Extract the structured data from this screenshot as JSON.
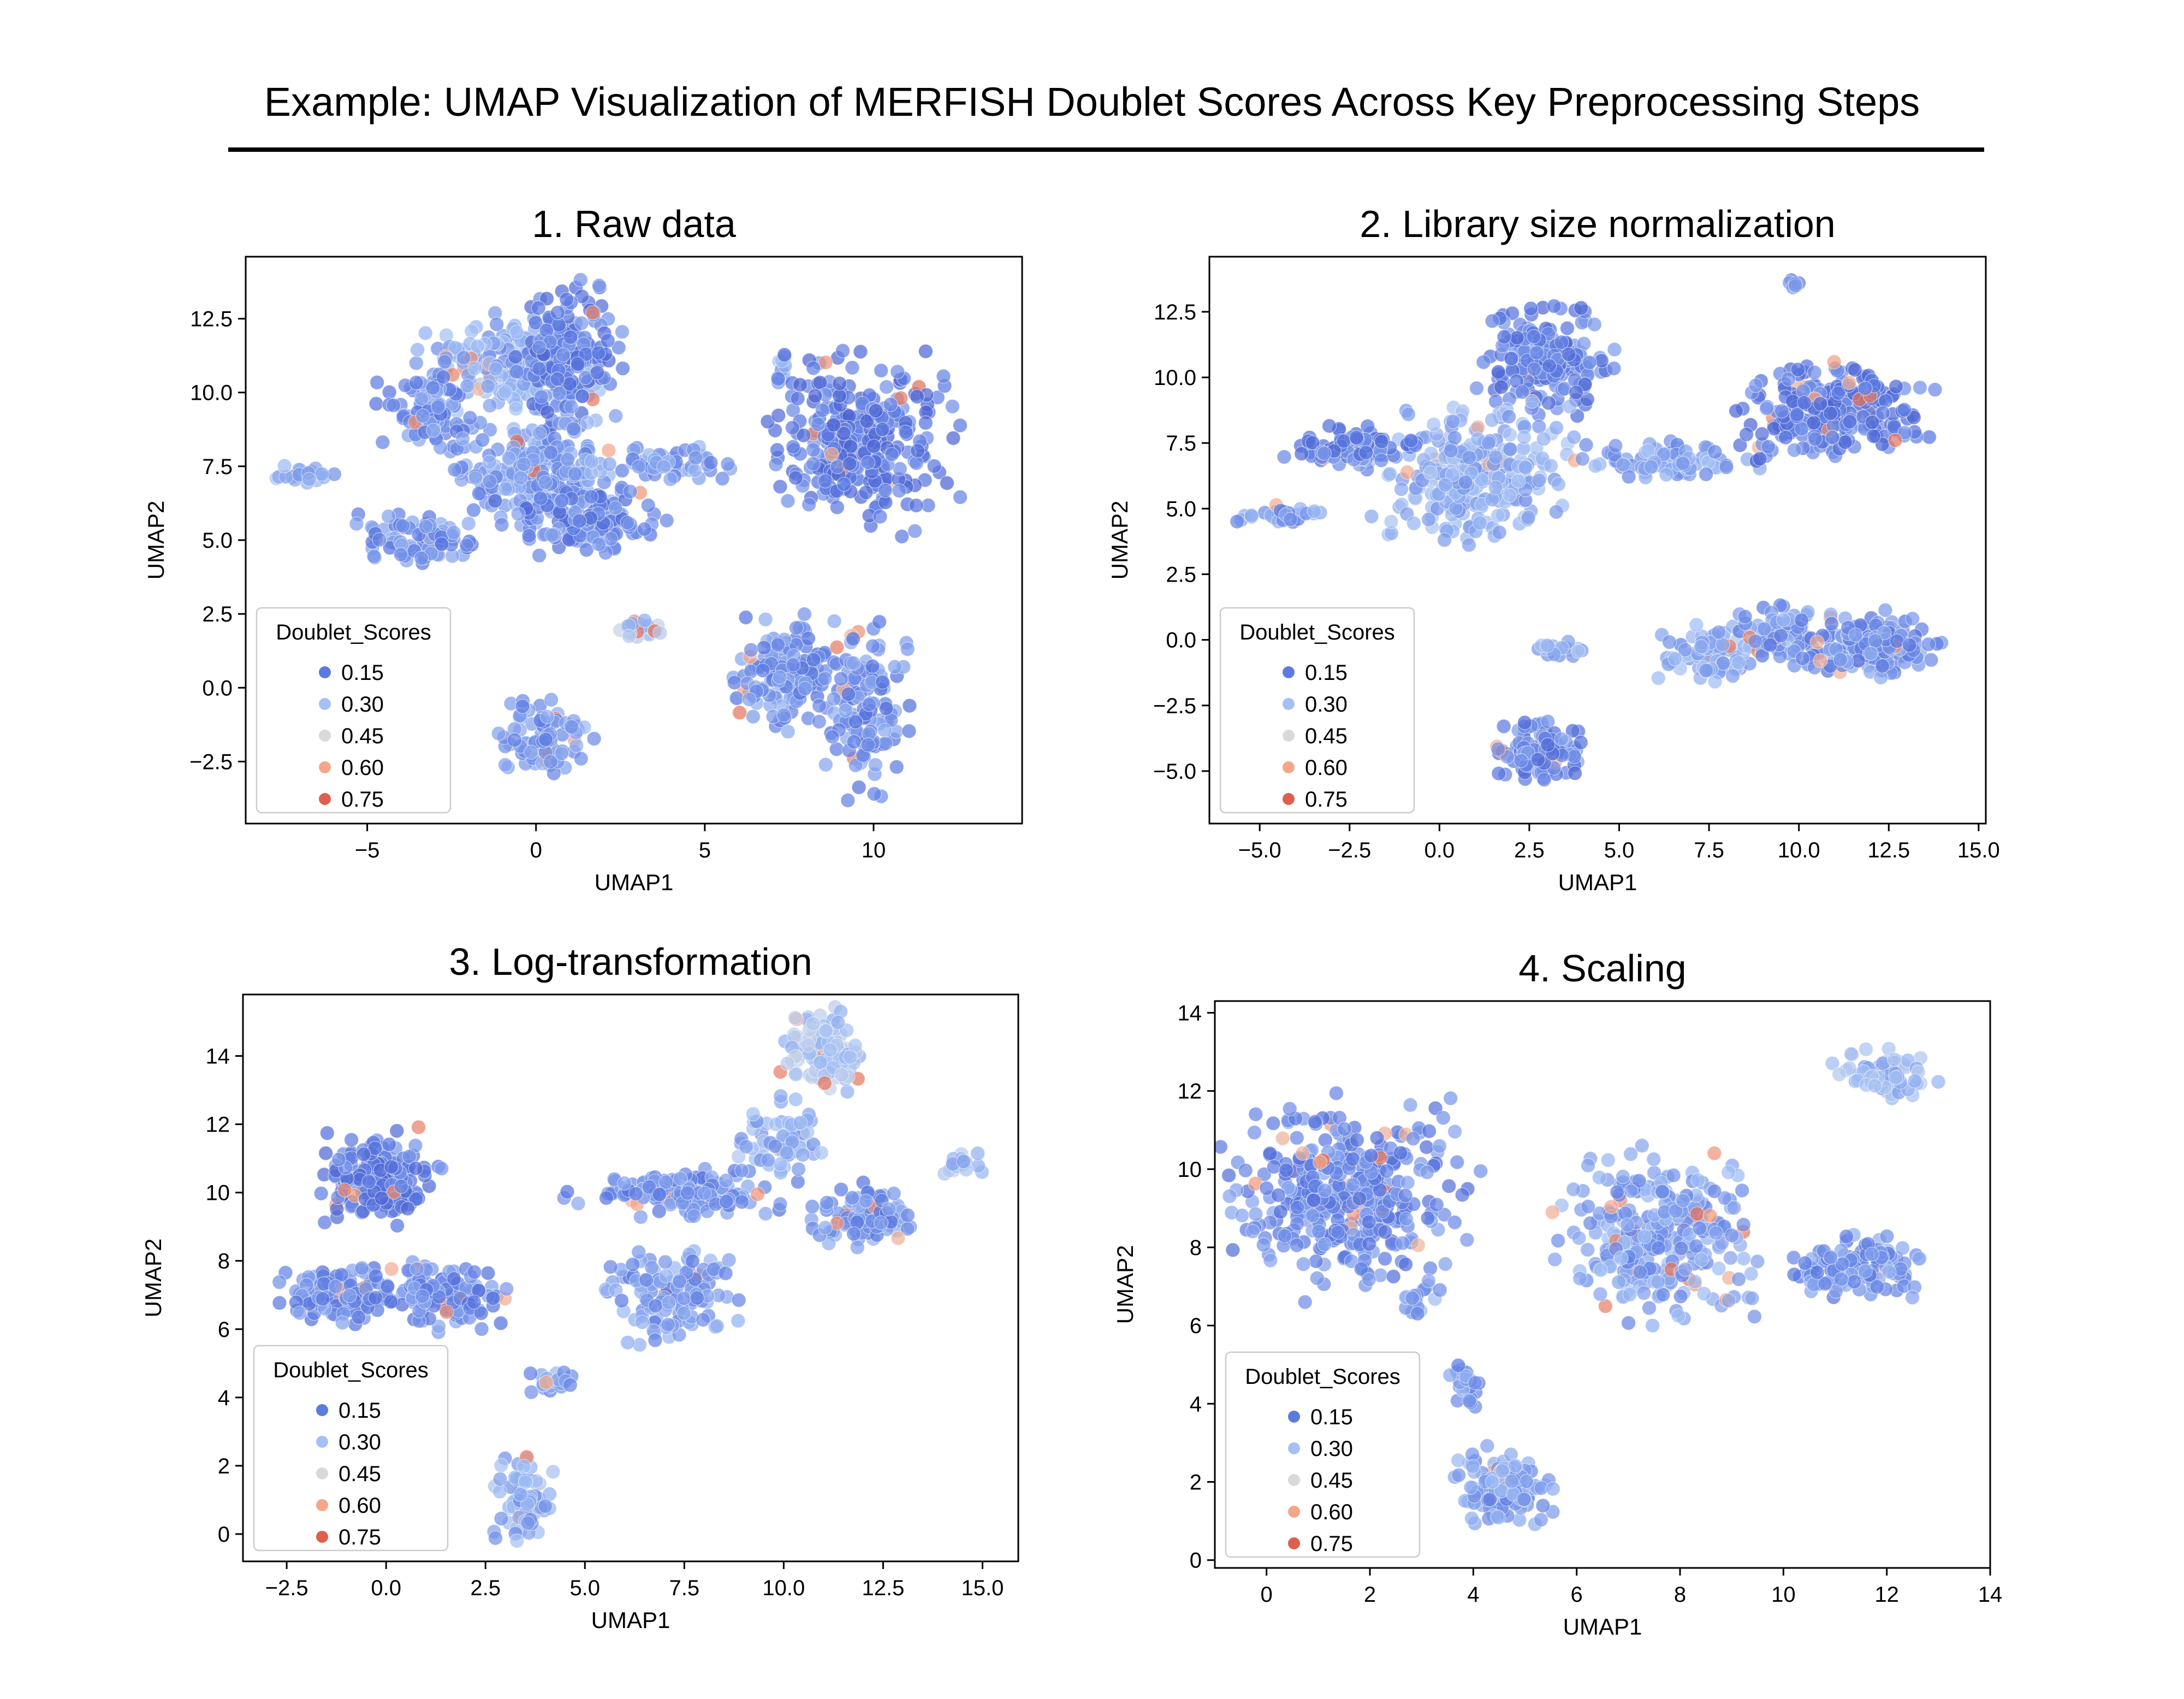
{
  "figure": {
    "title": "Example: UMAP Visualization of MERFISH Doublet Scores Across Key Preprocessing Steps"
  },
  "legend": {
    "title": "Doublet_Scores",
    "entries": [
      {
        "label": "0.15",
        "color": "#5b7be0"
      },
      {
        "label": "0.30",
        "color": "#a6c0f5"
      },
      {
        "label": "0.45",
        "color": "#d9d9da"
      },
      {
        "label": "0.60",
        "color": "#f3a688"
      },
      {
        "label": "0.75",
        "color": "#dd604c"
      }
    ]
  },
  "colors": {
    "palette": "coolwarm",
    "low": "#4c6fd8",
    "high": "#d9533f"
  },
  "chart_data": [
    {
      "type": "scatter",
      "title": "1. Raw data",
      "xlabel": "UMAP1",
      "ylabel": "UMAP2",
      "xlim": [
        -8.6,
        14.4
      ],
      "ylim": [
        -4.6,
        14.6
      ],
      "xticks": [
        -5,
        0,
        5,
        10
      ],
      "xtick_labels": [
        "−5",
        "0",
        "5",
        "10"
      ],
      "yticks": [
        -2.5,
        0.0,
        2.5,
        5.0,
        7.5,
        10.0,
        12.5
      ],
      "ytick_labels": [
        "−2.5",
        "0.0",
        "2.5",
        "5.0",
        "7.5",
        "10.0",
        "12.5"
      ],
      "grid": false,
      "legend_position": "lower-left",
      "hot_score": 0.72,
      "clusters": [
        {
          "cx": -1.0,
          "cy": 10.8,
          "rx": 2.6,
          "ry": 1.8,
          "n": 170,
          "score": 0.25
        },
        {
          "cx": 1.0,
          "cy": 11.3,
          "rx": 1.6,
          "ry": 2.4,
          "n": 170,
          "score": 0.16
        },
        {
          "cx": -3.2,
          "cy": 9.4,
          "rx": 1.4,
          "ry": 1.6,
          "n": 90,
          "score": 0.2
        },
        {
          "cx": 0.2,
          "cy": 7.4,
          "rx": 2.8,
          "ry": 1.8,
          "n": 200,
          "score": 0.23
        },
        {
          "cx": 1.4,
          "cy": 5.6,
          "rx": 2.6,
          "ry": 1.1,
          "n": 120,
          "score": 0.17
        },
        {
          "cx": -3.4,
          "cy": 5.0,
          "rx": 2.0,
          "ry": 0.8,
          "n": 90,
          "score": 0.2
        },
        {
          "cx": -6.8,
          "cy": 7.2,
          "rx": 1.0,
          "ry": 0.3,
          "n": 25,
          "score": 0.26
        },
        {
          "cx": 4.2,
          "cy": 7.6,
          "rx": 1.8,
          "ry": 0.6,
          "n": 45,
          "score": 0.22
        },
        {
          "cx": 7.3,
          "cy": 10.8,
          "rx": 0.2,
          "ry": 1.0,
          "n": 10,
          "score": 0.25
        },
        {
          "cx": 9.6,
          "cy": 8.3,
          "rx": 2.8,
          "ry": 2.8,
          "n": 290,
          "score": 0.14
        },
        {
          "cx": 3.0,
          "cy": 2.0,
          "rx": 0.8,
          "ry": 0.35,
          "n": 25,
          "score": 0.33
        },
        {
          "cx": 0.2,
          "cy": -1.7,
          "rx": 1.4,
          "ry": 1.2,
          "n": 90,
          "score": 0.22
        },
        {
          "cx": 7.3,
          "cy": 0.5,
          "rx": 1.5,
          "ry": 2.0,
          "n": 140,
          "score": 0.2
        },
        {
          "cx": 9.7,
          "cy": -0.6,
          "rx": 1.2,
          "ry": 2.8,
          "n": 130,
          "score": 0.19
        }
      ]
    },
    {
      "type": "scatter",
      "title": "2. Library size normalization",
      "xlabel": "UMAP1",
      "ylabel": "UMAP2",
      "xlim": [
        -6.4,
        15.2
      ],
      "ylim": [
        -7.0,
        14.6
      ],
      "xticks": [
        -5.0,
        -2.5,
        0.0,
        2.5,
        5.0,
        7.5,
        10.0,
        12.5,
        15.0
      ],
      "xtick_labels": [
        "−5.0",
        "−2.5",
        "0.0",
        "2.5",
        "5.0",
        "7.5",
        "10.0",
        "12.5",
        "15.0"
      ],
      "yticks": [
        -5.0,
        -2.5,
        0.0,
        2.5,
        5.0,
        7.5,
        10.0,
        12.5
      ],
      "ytick_labels": [
        "−5.0",
        "−2.5",
        "0.0",
        "2.5",
        "5.0",
        "7.5",
        "10.0",
        "12.5"
      ],
      "grid": false,
      "legend_position": "lower-left",
      "hot_score": 0.72,
      "clusters": [
        {
          "cx": 3.0,
          "cy": 10.6,
          "rx": 1.8,
          "ry": 2.0,
          "n": 180,
          "score": 0.16
        },
        {
          "cx": 1.0,
          "cy": 6.5,
          "rx": 2.6,
          "ry": 2.6,
          "n": 280,
          "score": 0.27
        },
        {
          "cx": -2.5,
          "cy": 7.3,
          "rx": 1.8,
          "ry": 0.8,
          "n": 90,
          "score": 0.17
        },
        {
          "cx": -4.4,
          "cy": 4.8,
          "rx": 1.3,
          "ry": 0.35,
          "n": 30,
          "score": 0.22
        },
        {
          "cx": 6.5,
          "cy": 6.8,
          "rx": 2.8,
          "ry": 0.7,
          "n": 80,
          "score": 0.24
        },
        {
          "cx": 11.1,
          "cy": 8.7,
          "rx": 2.6,
          "ry": 1.9,
          "n": 240,
          "score": 0.15
        },
        {
          "cx": 2.8,
          "cy": -4.3,
          "rx": 1.2,
          "ry": 1.2,
          "n": 110,
          "score": 0.17
        },
        {
          "cx": 3.3,
          "cy": -0.4,
          "rx": 0.8,
          "ry": 0.3,
          "n": 25,
          "score": 0.27
        },
        {
          "cx": 7.6,
          "cy": -0.5,
          "rx": 1.4,
          "ry": 1.0,
          "n": 80,
          "score": 0.26
        },
        {
          "cx": 9.5,
          "cy": 0.2,
          "rx": 1.3,
          "ry": 1.1,
          "n": 70,
          "score": 0.22
        },
        {
          "cx": 12.0,
          "cy": -0.2,
          "rx": 1.9,
          "ry": 1.2,
          "n": 190,
          "score": 0.2
        },
        {
          "cx": 9.8,
          "cy": 13.5,
          "rx": 0.2,
          "ry": 0.25,
          "n": 6,
          "score": 0.22
        }
      ]
    },
    {
      "type": "scatter",
      "title": "3. Log-transformation",
      "xlabel": "UMAP1",
      "ylabel": "UMAP2",
      "xlim": [
        -3.6,
        15.9
      ],
      "ylim": [
        -0.8,
        15.8
      ],
      "xticks": [
        -2.5,
        0.0,
        2.5,
        5.0,
        7.5,
        10.0,
        12.5,
        15.0
      ],
      "xtick_labels": [
        "−2.5",
        "0.0",
        "2.5",
        "5.0",
        "7.5",
        "10.0",
        "12.5",
        "15.0"
      ],
      "yticks": [
        0,
        2,
        4,
        6,
        8,
        10,
        12,
        14
      ],
      "ytick_labels": [
        "0",
        "2",
        "4",
        "6",
        "8",
        "10",
        "12",
        "14"
      ],
      "grid": false,
      "legend_position": "lower-left",
      "hot_score": 0.72,
      "clusters": [
        {
          "cx": -0.2,
          "cy": 10.4,
          "rx": 1.5,
          "ry": 1.4,
          "n": 170,
          "score": 0.15
        },
        {
          "cx": -1.2,
          "cy": 7.0,
          "rx": 1.5,
          "ry": 0.9,
          "n": 110,
          "score": 0.18
        },
        {
          "cx": 1.3,
          "cy": 7.0,
          "rx": 1.9,
          "ry": 1.0,
          "n": 130,
          "score": 0.19
        },
        {
          "cx": 4.2,
          "cy": 4.5,
          "rx": 0.6,
          "ry": 0.4,
          "n": 25,
          "score": 0.23
        },
        {
          "cx": 3.5,
          "cy": 1.0,
          "rx": 0.8,
          "ry": 1.2,
          "n": 80,
          "score": 0.26
        },
        {
          "cx": 7.4,
          "cy": 10.0,
          "rx": 2.6,
          "ry": 0.7,
          "n": 130,
          "score": 0.19
        },
        {
          "cx": 7.3,
          "cy": 7.0,
          "rx": 1.6,
          "ry": 1.4,
          "n": 120,
          "score": 0.22
        },
        {
          "cx": 10.0,
          "cy": 11.4,
          "rx": 1.0,
          "ry": 1.3,
          "n": 70,
          "score": 0.27
        },
        {
          "cx": 12.1,
          "cy": 9.3,
          "rx": 1.4,
          "ry": 0.9,
          "n": 100,
          "score": 0.2
        },
        {
          "cx": 14.4,
          "cy": 10.9,
          "rx": 0.6,
          "ry": 0.4,
          "n": 15,
          "score": 0.3
        },
        {
          "cx": 11.0,
          "cy": 14.1,
          "rx": 1.0,
          "ry": 1.2,
          "n": 110,
          "score": 0.33
        }
      ]
    },
    {
      "type": "scatter",
      "title": "4. Scaling",
      "xlabel": "UMAP1",
      "ylabel": "UMAP2",
      "xlim": [
        -1.0,
        14.0
      ],
      "ylim": [
        -0.2,
        14.3
      ],
      "xticks": [
        0,
        2,
        4,
        6,
        8,
        10,
        12,
        14
      ],
      "xtick_labels": [
        "0",
        "2",
        "4",
        "6",
        "8",
        "10",
        "12",
        "14"
      ],
      "yticks": [
        0,
        2,
        4,
        6,
        8,
        10,
        12,
        14
      ],
      "ytick_labels": [
        "0",
        "2",
        "4",
        "6",
        "8",
        "10",
        "12",
        "14"
      ],
      "grid": false,
      "legend_position": "lower-left",
      "hot_score": 0.72,
      "clusters": [
        {
          "cx": 1.6,
          "cy": 9.3,
          "rx": 2.3,
          "ry": 2.4,
          "n": 380,
          "score": 0.18
        },
        {
          "cx": 2.9,
          "cy": 6.6,
          "rx": 0.4,
          "ry": 0.6,
          "n": 15,
          "score": 0.24
        },
        {
          "cx": 3.8,
          "cy": 4.5,
          "rx": 0.35,
          "ry": 0.6,
          "n": 25,
          "score": 0.22
        },
        {
          "cx": 4.6,
          "cy": 1.8,
          "rx": 0.9,
          "ry": 1.0,
          "n": 130,
          "score": 0.23
        },
        {
          "cx": 7.6,
          "cy": 8.2,
          "rx": 2.0,
          "ry": 2.1,
          "n": 300,
          "score": 0.24
        },
        {
          "cx": 11.4,
          "cy": 7.5,
          "rx": 1.3,
          "ry": 0.8,
          "n": 110,
          "score": 0.2
        },
        {
          "cx": 12.0,
          "cy": 12.4,
          "rx": 1.0,
          "ry": 0.6,
          "n": 70,
          "score": 0.29
        }
      ]
    }
  ]
}
